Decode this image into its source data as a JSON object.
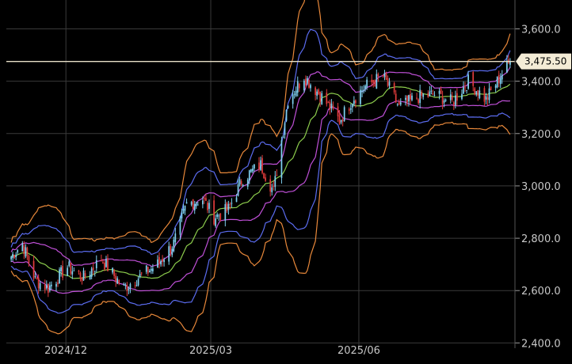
{
  "chart_data": {
    "type": "candlestick",
    "title": "",
    "xlabel": "",
    "ylabel": "",
    "ylim": [
      2380,
      3680
    ],
    "y_ticks": [
      2400,
      2600,
      2800,
      3000,
      3200,
      3400,
      3600
    ],
    "y_tick_labels": [
      "2,400.0",
      "2,600.0",
      "2,800.0",
      "3,000.0",
      "3,200.0",
      "3,400.0",
      "3,600.0"
    ],
    "x_ticks": [
      {
        "date": "2024-12-01",
        "label": "2024/12"
      },
      {
        "date": "2025-03-01",
        "label": "2025/03"
      },
      {
        "date": "2025-06-01",
        "label": "2025/06"
      }
    ],
    "x_range": [
      "2024-10-25",
      "2025-09-05"
    ],
    "grid": true,
    "last_price": 3475.5,
    "last_price_label": "3,475.50",
    "overlays": [
      {
        "name": "",
        "color": "#e8883a"
      },
      {
        "name": "",
        "color": "#5b6cf0"
      },
      {
        "name": "",
        "color": "#c050d8"
      },
      {
        "name": "",
        "color": "#8ccc4c"
      }
    ],
    "key_levels": [
      {
        "date": "2024-10-28",
        "close": 2730
      },
      {
        "date": "2024-11-04",
        "close": 2780
      },
      {
        "date": "2024-11-12",
        "close": 2640
      },
      {
        "date": "2024-11-20",
        "close": 2610
      },
      {
        "date": "2024-12-02",
        "close": 2690
      },
      {
        "date": "2024-12-12",
        "close": 2650
      },
      {
        "date": "2024-12-23",
        "close": 2720
      },
      {
        "date": "2025-01-06",
        "close": 2610
      },
      {
        "date": "2025-01-15",
        "close": 2650
      },
      {
        "date": "2025-01-27",
        "close": 2700
      },
      {
        "date": "2025-02-06",
        "close": 2780
      },
      {
        "date": "2025-02-14",
        "close": 2930
      },
      {
        "date": "2025-02-24",
        "close": 2950
      },
      {
        "date": "2025-03-03",
        "close": 2880
      },
      {
        "date": "2025-03-12",
        "close": 2910
      },
      {
        "date": "2025-03-21",
        "close": 3030
      },
      {
        "date": "2025-04-01",
        "close": 3080
      },
      {
        "date": "2025-04-09",
        "close": 2980
      },
      {
        "date": "2025-04-18",
        "close": 3330
      },
      {
        "date": "2025-04-28",
        "close": 3420
      },
      {
        "date": "2025-05-09",
        "close": 3340
      },
      {
        "date": "2025-05-20",
        "close": 3250
      },
      {
        "date": "2025-05-28",
        "close": 3330
      },
      {
        "date": "2025-06-05",
        "close": 3380
      },
      {
        "date": "2025-06-16",
        "close": 3420
      },
      {
        "date": "2025-06-26",
        "close": 3300
      },
      {
        "date": "2025-07-08",
        "close": 3340
      },
      {
        "date": "2025-07-18",
        "close": 3350
      },
      {
        "date": "2025-07-29",
        "close": 3320
      },
      {
        "date": "2025-08-08",
        "close": 3400
      },
      {
        "date": "2025-08-19",
        "close": 3330
      },
      {
        "date": "2025-08-28",
        "close": 3420
      },
      {
        "date": "2025-09-03",
        "close": 3475.5
      }
    ]
  }
}
